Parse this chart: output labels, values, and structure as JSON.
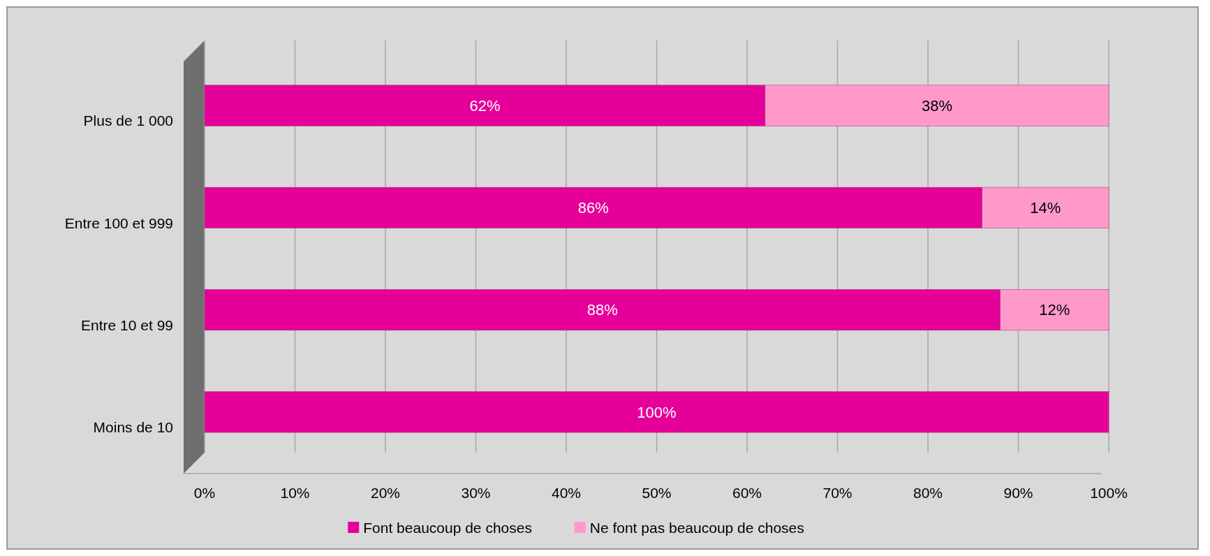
{
  "chart_data": {
    "type": "bar",
    "orientation": "horizontal",
    "stacked": true,
    "categories": [
      "Plus de 1 000",
      "Entre 100 et 999",
      "Entre 10 et 99",
      "Moins de 10"
    ],
    "series": [
      {
        "name": "Font beaucoup de choses",
        "color": "#e6009a",
        "values": [
          62,
          86,
          88,
          100
        ],
        "value_labels": [
          "62%",
          "86%",
          "88%",
          "100%"
        ]
      },
      {
        "name": "Ne font pas beaucoup de choses",
        "color": "#ff99cc",
        "values": [
          38,
          14,
          12,
          null
        ],
        "value_labels": [
          "38%",
          "14%",
          "12%",
          null
        ]
      }
    ],
    "xlim": [
      0,
      100
    ],
    "xticks": [
      {
        "value": 0,
        "label": "0%"
      },
      {
        "value": 10,
        "label": "10%"
      },
      {
        "value": 20,
        "label": "20%"
      },
      {
        "value": 30,
        "label": "30%"
      },
      {
        "value": 40,
        "label": "40%"
      },
      {
        "value": 50,
        "label": "50%"
      },
      {
        "value": 60,
        "label": "60%"
      },
      {
        "value": 70,
        "label": "70%"
      },
      {
        "value": 80,
        "label": "80%"
      },
      {
        "value": 90,
        "label": "90%"
      },
      {
        "value": 100,
        "label": "100%"
      }
    ],
    "grid": "x",
    "legend": "bottom"
  }
}
